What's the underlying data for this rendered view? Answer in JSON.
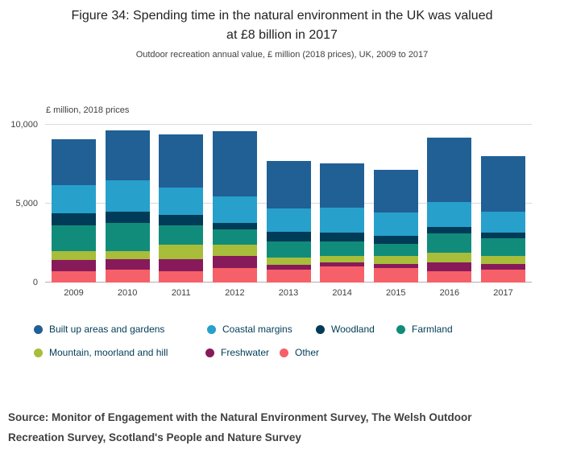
{
  "header": {
    "title": "Figure 34: Spending time in the natural environment in the UK was valued\nat £8 billion in 2017",
    "subtitle": "Outdoor recreation annual value, £ million (2018 prices), UK, 2009 to 2017"
  },
  "footer": {
    "source": "Source: Monitor of Engagement with the Natural Environment Survey, The Welsh Outdoor\nRecreation Survey, Scotland's People and Nature Survey"
  },
  "chart_data": {
    "type": "bar",
    "stacked": true,
    "title": "Figure 34: Spending time in the natural environment in the UK was valued at £8 billion in 2017",
    "subtitle": "Outdoor recreation annual value, £ million (2018 prices), UK, 2009 to 2017",
    "unit_label": "£ million, 2018 prices",
    "categories": [
      "2009",
      "2010",
      "2011",
      "2012",
      "2013",
      "2014",
      "2015",
      "2016",
      "2017"
    ],
    "series": [
      {
        "name": "Built up areas and gardens",
        "color": "#206095",
        "values": [
          2900,
          3150,
          3400,
          4150,
          3000,
          2800,
          2700,
          4100,
          3500
        ]
      },
      {
        "name": "Coastal margins",
        "color": "#27A0CC",
        "values": [
          1800,
          2000,
          1700,
          1650,
          1500,
          1600,
          1500,
          1600,
          1350
        ]
      },
      {
        "name": "Woodland",
        "color": "#003C57",
        "values": [
          800,
          700,
          700,
          450,
          600,
          550,
          500,
          400,
          350
        ]
      },
      {
        "name": "Farmland",
        "color": "#118C7B",
        "values": [
          1600,
          1800,
          1200,
          950,
          1000,
          900,
          750,
          1200,
          1100
        ]
      },
      {
        "name": "Mountain, moorland and hill",
        "color": "#A8BD3A",
        "values": [
          550,
          500,
          900,
          700,
          500,
          400,
          500,
          600,
          500
        ]
      },
      {
        "name": "Freshwater",
        "color": "#871A5B",
        "values": [
          750,
          700,
          800,
          800,
          300,
          300,
          300,
          600,
          400
        ]
      },
      {
        "name": "Other",
        "color": "#F66068",
        "values": [
          700,
          800,
          700,
          900,
          800,
          1000,
          900,
          700,
          800
        ]
      }
    ],
    "stack_order_bottom_to_top": [
      "Other",
      "Freshwater",
      "Mountain, moorland and hill",
      "Farmland",
      "Woodland",
      "Coastal margins",
      "Built up areas and gardens"
    ],
    "legend_rows": [
      [
        "Built up areas and gardens",
        "Coastal margins",
        "Woodland",
        "Farmland"
      ],
      [
        "Mountain, moorland and hill",
        "Freshwater",
        "Other"
      ]
    ],
    "ylim": [
      0,
      10000
    ],
    "yticks": [
      0,
      5000,
      10000
    ],
    "ytick_labels": [
      "0",
      "5,000",
      "10,000"
    ],
    "grid": true,
    "legend_position": "bottom"
  }
}
